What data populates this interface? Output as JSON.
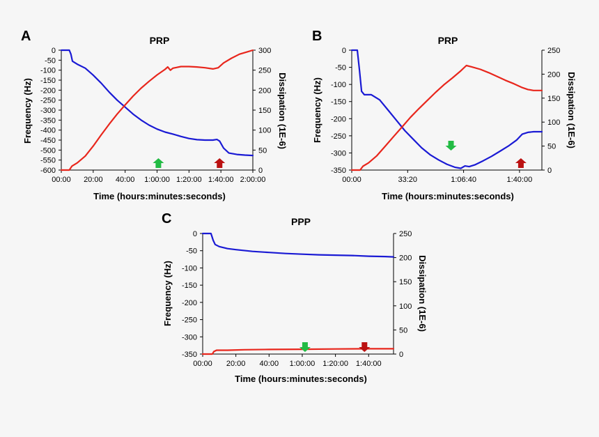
{
  "chart_data": [
    {
      "panel": "A",
      "type": "line",
      "title": "PRP",
      "xlabel": "Time (hours:minutes:seconds)",
      "ylabel": "Frequency (Hz)",
      "y2label": "Dissipation (1E-6)",
      "xlim": [
        0,
        7200
      ],
      "ylim": [
        -600,
        0
      ],
      "y2lim": [
        0,
        300
      ],
      "x_ticks": [
        0,
        1200,
        2400,
        3600,
        4800,
        6000,
        7200
      ],
      "x_tick_labels": [
        "00:00",
        "20:00",
        "40:00",
        "1:00:00",
        "1:20:00",
        "1:40:00",
        "2:00:00"
      ],
      "y_ticks": [
        0,
        -50,
        -100,
        -150,
        -200,
        -250,
        -300,
        -350,
        -400,
        -450,
        -500,
        -550,
        -600
      ],
      "y_tick_labels": [
        "0",
        "-50",
        "-100",
        "-150",
        "-200",
        "-250",
        "-300",
        "-350",
        "-400",
        "-450",
        "-500",
        "-550",
        "-600"
      ],
      "y2_ticks": [
        0,
        50,
        100,
        150,
        200,
        250,
        300
      ],
      "y2_tick_labels": [
        "0",
        "50",
        "100",
        "150",
        "200",
        "250",
        "300"
      ],
      "series": [
        {
          "axis": "left",
          "color": "#1a1ad4",
          "x": [
            0,
            300,
            360,
            420,
            600,
            900,
            1200,
            1500,
            1800,
            2100,
            2400,
            2700,
            3000,
            3300,
            3600,
            3900,
            4200,
            4500,
            4800,
            5100,
            5400,
            5700,
            5850,
            5950,
            6100,
            6300,
            6600,
            6900,
            7200
          ],
          "y": [
            0,
            0,
            -20,
            -55,
            -70,
            -90,
            -125,
            -165,
            -210,
            -250,
            -285,
            -320,
            -350,
            -375,
            -395,
            -410,
            -420,
            -432,
            -442,
            -448,
            -450,
            -450,
            -447,
            -455,
            -490,
            -515,
            -522,
            -525,
            -527
          ]
        },
        {
          "axis": "right",
          "color": "#e8261c",
          "x": [
            0,
            300,
            400,
            600,
            900,
            1200,
            1500,
            1800,
            2100,
            2400,
            2700,
            3000,
            3300,
            3600,
            3900,
            4000,
            4100,
            4200,
            4500,
            4800,
            5100,
            5400,
            5700,
            5900,
            6100,
            6400,
            6700,
            7000,
            7200
          ],
          "y": [
            0,
            0,
            10,
            18,
            35,
            60,
            88,
            115,
            140,
            163,
            185,
            205,
            222,
            238,
            252,
            258,
            250,
            255,
            259,
            259,
            258,
            256,
            253,
            256,
            268,
            280,
            290,
            296,
            300
          ]
        }
      ],
      "markers": [
        {
          "x": 3650,
          "direction": "up",
          "color": "#22bb44"
        },
        {
          "x": 5950,
          "direction": "up",
          "color": "#bb1111"
        }
      ]
    },
    {
      "panel": "B",
      "type": "line",
      "title": "PRP",
      "xlabel": "Time (hours:minutes:seconds)",
      "ylabel": "Frequency (Hz)",
      "y2label": "Dissipation (1E-6)",
      "xlim": [
        0,
        6800
      ],
      "ylim": [
        -350,
        0
      ],
      "y2lim": [
        0,
        250
      ],
      "x_ticks": [
        0,
        2000,
        4000,
        6000
      ],
      "x_tick_labels": [
        "00:00",
        "33:20",
        "1:06:40",
        "1:40:00"
      ],
      "y_ticks": [
        0,
        -50,
        -100,
        -150,
        -200,
        -250,
        -300,
        -350
      ],
      "y_tick_labels": [
        "0",
        "-50",
        "-100",
        "-150",
        "-200",
        "-250",
        "-300",
        "-350"
      ],
      "y2_ticks": [
        0,
        50,
        100,
        150,
        200,
        250
      ],
      "y2_tick_labels": [
        "0",
        "50",
        "100",
        "150",
        "200",
        "250"
      ],
      "series": [
        {
          "axis": "left",
          "color": "#1a1ad4",
          "x": [
            0,
            200,
            280,
            350,
            450,
            700,
            1000,
            1300,
            1600,
            1900,
            2200,
            2500,
            2800,
            3100,
            3400,
            3700,
            3900,
            4050,
            4200,
            4400,
            4700,
            5000,
            5300,
            5600,
            5900,
            6100,
            6300,
            6500,
            6800
          ],
          "y": [
            0,
            0,
            -60,
            -120,
            -130,
            -130,
            -145,
            -175,
            -205,
            -235,
            -260,
            -285,
            -305,
            -320,
            -333,
            -342,
            -345,
            -338,
            -340,
            -335,
            -323,
            -310,
            -295,
            -280,
            -262,
            -245,
            -240,
            -238,
            -238
          ]
        },
        {
          "axis": "right",
          "color": "#e8261c",
          "x": [
            0,
            300,
            400,
            600,
            900,
            1200,
            1500,
            1800,
            2100,
            2400,
            2700,
            3000,
            3300,
            3600,
            3900,
            4100,
            4300,
            4600,
            4900,
            5200,
            5500,
            5800,
            6100,
            6300,
            6500,
            6800
          ],
          "y": [
            0,
            0,
            8,
            15,
            30,
            50,
            70,
            90,
            110,
            128,
            145,
            162,
            178,
            192,
            207,
            218,
            215,
            210,
            203,
            195,
            187,
            180,
            172,
            168,
            166,
            166
          ]
        }
      ],
      "markers": [
        {
          "x": 3550,
          "direction": "down",
          "color": "#22bb44"
        },
        {
          "x": 6050,
          "direction": "up",
          "color": "#bb1111"
        }
      ]
    },
    {
      "panel": "C",
      "type": "line",
      "title": "PPP",
      "xlabel": "Time (hours:minutes:seconds)",
      "ylabel": "Frequency (Hz)",
      "y2label": "Dissipation (1E-6)",
      "xlim": [
        0,
        6900
      ],
      "ylim": [
        -350,
        0
      ],
      "y2lim": [
        0,
        250
      ],
      "x_ticks": [
        0,
        1200,
        2400,
        3600,
        4800,
        6000
      ],
      "x_tick_labels": [
        "00:00",
        "20:00",
        "40:00",
        "1:00:00",
        "1:20:00",
        "1:40:00"
      ],
      "y_ticks": [
        0,
        -50,
        -100,
        -150,
        -200,
        -250,
        -300,
        -350
      ],
      "y_tick_labels": [
        "0",
        "-50",
        "-100",
        "-150",
        "-200",
        "-250",
        "-300",
        "-350"
      ],
      "y2_ticks": [
        0,
        50,
        100,
        150,
        200,
        250
      ],
      "y2_tick_labels": [
        "0",
        "50",
        "100",
        "150",
        "200",
        "250"
      ],
      "series": [
        {
          "axis": "left",
          "color": "#1a1ad4",
          "x": [
            0,
            300,
            380,
            450,
            600,
            900,
            1200,
            1800,
            2400,
            3000,
            3600,
            4200,
            4800,
            5400,
            6000,
            6600,
            6900
          ],
          "y": [
            0,
            0,
            -20,
            -32,
            -38,
            -44,
            -47,
            -52,
            -55,
            -58,
            -60,
            -62,
            -63,
            -64,
            -66,
            -67,
            -68
          ]
        },
        {
          "axis": "right",
          "color": "#e8261c",
          "x": [
            0,
            350,
            400,
            500,
            900,
            1500,
            2400,
            3600,
            4800,
            6000,
            6900
          ],
          "y": [
            0,
            0,
            5,
            8,
            8,
            9,
            9.5,
            10,
            10.5,
            11,
            11
          ]
        }
      ],
      "markers": [
        {
          "x": 3700,
          "direction": "down",
          "color": "#22bb44"
        },
        {
          "x": 5850,
          "direction": "down",
          "color": "#bb1111"
        }
      ]
    }
  ]
}
